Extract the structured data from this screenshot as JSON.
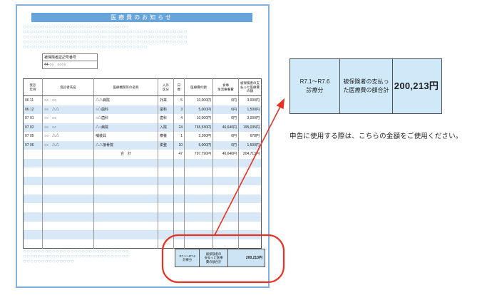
{
  "page": {
    "title": "医療費のお知らせ",
    "insured_box": {
      "label": "被保険者証記号番号",
      "value": "44-○○　○○○○"
    },
    "circles_top": [
      "○○○○○○○○○○○○○○○○○○○○○○○○○○○○○",
      "○○○○○○○○○○○○○○○○○○○○○○○○○○○○○○○○○○○○○○○○○○○○○",
      "○○○○○○○○○○○○○○○○○○○○○○○○○○○○○○○○○○○○○○○○○○○○○",
      "○○○○○○○○○○○○○○○○○○○○○○○○○○○○○○○○○○○○○○○○○○○○○",
      "○○○○○○○○○○○○○○○○○○○○○○○○○○○○○○○○○○"
    ],
    "circles_bottom": [
      "○○○○○○○○○○○○○○○○○○○○○○○○○○○○○",
      "○○○○○○○○○○○○○○○○○○○○○○○○○○○○○",
      "○○○○○○○○○○○○○○"
    ]
  },
  "table": {
    "headers": [
      "受診\n年月",
      "受診者氏名",
      "医療機関等の名称",
      "入外\n区分",
      "日\n数",
      "医療費の額",
      "食事\n生活療養費",
      "被保険者の支\n払った医療費\nの額"
    ],
    "rows": [
      [
        "06 11",
        "○○　○○",
        "△△病院",
        "外来",
        "5",
        "10,000円",
        "0円",
        "3,000円"
      ],
      [
        "06 12",
        "○○　△△",
        "○△歯科",
        "歯科",
        "3",
        "5,000円",
        "0円",
        "1,500円"
      ],
      [
        "07 01",
        "○○　○○",
        "○△歯科",
        "歯科",
        "4",
        "10,000円",
        "0円",
        "3,000円"
      ],
      [
        "07 02",
        "○○　○○",
        "△○病院",
        "入院",
        "24",
        "765,530円",
        "46,640円",
        "195,035円"
      ],
      [
        "07 05",
        "○○　△△",
        "補装具",
        "療養",
        "1",
        "2,260円",
        "0円",
        "678円"
      ],
      [
        "07 06",
        "○○　△△",
        "△△接骨院",
        "柔整",
        "10",
        "5,000円",
        "0円",
        "1,500円"
      ]
    ],
    "total_row": [
      "",
      "",
      "合　計",
      "",
      "47",
      "797,790円",
      "46,640円",
      "204,713円"
    ],
    "empty_row_count": 10
  },
  "summary_box": {
    "period": "R7.1～R7.6\n診療分",
    "label": "被保険者の\n支払った医療\n費の額合計",
    "amount": "200,213円"
  },
  "callout": {
    "period": "R7.1～R7.6\n診療分",
    "label": "被保険者の支払っ\nた医療費の額合計",
    "amount": "200,213円",
    "note": "申告に使用する際は、こちらの金額をご使用ください。"
  },
  "colors": {
    "banner": "#67a4d9",
    "page_border": "#7fb2e0",
    "stripe": "#d9e8f6",
    "circle": "#a7cde9",
    "annotation_red": "#e63223",
    "callout_bg": "#cfe9f9",
    "summary_bg": "#cde4f4"
  }
}
